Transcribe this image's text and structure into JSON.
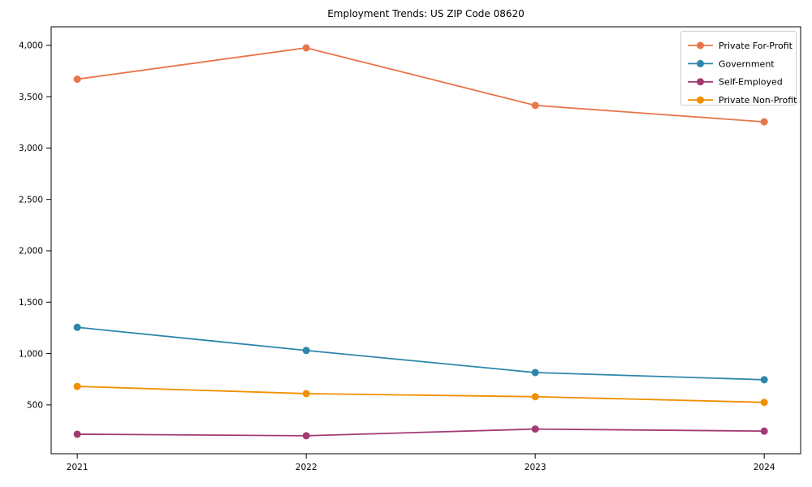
{
  "chart_data": {
    "type": "line",
    "title": "Employment Trends: US ZIP Code 08620",
    "xlabel": "",
    "ylabel": "",
    "x": [
      2021,
      2022,
      2023,
      2024
    ],
    "series": [
      {
        "name": "Private For-Profit",
        "color": "#E8764B",
        "marker": "circle",
        "values": [
          3670,
          3975,
          3415,
          3255
        ]
      },
      {
        "name": "Government",
        "color": "#2E86AB",
        "marker": "circle",
        "values": [
          1255,
          1030,
          815,
          745
        ]
      },
      {
        "name": "Self-Employed",
        "color": "#A23B72",
        "marker": "circle",
        "values": [
          215,
          200,
          265,
          245
        ]
      },
      {
        "name": "Private Non-Profit",
        "color": "#F18F01",
        "marker": "circle",
        "values": [
          680,
          610,
          580,
          525
        ]
      }
    ],
    "xticks": {
      "values": [
        2021,
        2022,
        2023,
        2024
      ],
      "labels": [
        "2021",
        "2022",
        "2023",
        "2024"
      ]
    },
    "yticks": {
      "values": [
        500,
        1000,
        1500,
        2000,
        2500,
        3000,
        3500,
        4000
      ],
      "labels": [
        "500",
        "1,000",
        "1,500",
        "2,000",
        "2,500",
        "3,000",
        "3,500",
        "4,000"
      ]
    },
    "xlim": [
      2020.886,
      2024.159
    ],
    "ylim": [
      25,
      4180
    ],
    "grid": false,
    "legend": {
      "position": "upper right",
      "entries": [
        "Private For-Profit",
        "Government",
        "Self-Employed",
        "Private Non-Profit"
      ]
    },
    "axis_color": "#000000",
    "legend_border_color": "#cccccc",
    "background_color": "#ffffff"
  }
}
